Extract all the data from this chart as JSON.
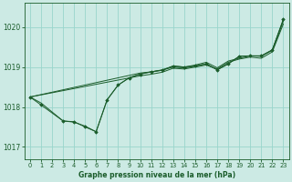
{
  "title": "Graphe pression niveau de la mer (hPa)",
  "bg_color": "#cceae4",
  "grid_color": "#99d5cc",
  "line_color": "#1a5c2a",
  "xlim": [
    -0.5,
    23.5
  ],
  "ylim": [
    1016.7,
    1020.6
  ],
  "yticks": [
    1017,
    1018,
    1019,
    1020
  ],
  "xticks": [
    0,
    1,
    2,
    3,
    4,
    5,
    6,
    7,
    8,
    9,
    10,
    11,
    12,
    13,
    14,
    15,
    16,
    17,
    18,
    19,
    20,
    21,
    22,
    23
  ],
  "series_with_markers": [
    {
      "x": [
        0,
        1,
        3,
        4,
        5,
        6,
        7,
        8,
        9,
        10,
        11,
        12,
        13,
        14,
        15,
        16,
        17,
        18,
        19,
        20,
        21,
        22,
        23
      ],
      "y": [
        1018.25,
        1018.05,
        1017.65,
        1017.62,
        1017.52,
        1017.38,
        1018.18,
        1018.55,
        1018.73,
        1018.82,
        1018.88,
        1018.93,
        1019.02,
        1019.0,
        1019.03,
        1019.08,
        1018.93,
        1019.08,
        1019.27,
        1019.28,
        1019.28,
        1019.43,
        1020.2
      ]
    }
  ],
  "series_no_markers": [
    {
      "x": [
        0,
        1,
        3,
        4,
        5,
        6,
        7,
        8,
        9,
        10,
        11,
        12,
        13,
        14,
        15,
        16,
        17,
        18,
        19,
        20,
        21,
        22,
        23
      ],
      "y": [
        1018.25,
        1018.1,
        1017.65,
        1017.63,
        1017.5,
        1017.38,
        1018.18,
        1018.55,
        1018.73,
        1018.83,
        1018.88,
        1018.92,
        1019.0,
        1018.98,
        1019.02,
        1019.08,
        1018.93,
        1019.08,
        1019.27,
        1019.28,
        1019.27,
        1019.42,
        1020.18
      ]
    },
    {
      "x": [
        0,
        10,
        11,
        12,
        13,
        14,
        15,
        16,
        17,
        18,
        19,
        20,
        21,
        22,
        23
      ],
      "y": [
        1018.25,
        1018.85,
        1018.88,
        1018.92,
        1019.03,
        1019.0,
        1019.05,
        1019.12,
        1018.98,
        1019.15,
        1019.22,
        1019.28,
        1019.28,
        1019.43,
        1020.15
      ]
    },
    {
      "x": [
        0,
        10,
        11,
        12,
        13,
        14,
        15,
        16,
        17,
        18,
        19,
        20,
        21,
        22,
        23
      ],
      "y": [
        1018.25,
        1018.78,
        1018.82,
        1018.87,
        1018.97,
        1018.95,
        1019.0,
        1019.05,
        1018.95,
        1019.12,
        1019.2,
        1019.25,
        1019.22,
        1019.38,
        1020.08
      ]
    }
  ]
}
